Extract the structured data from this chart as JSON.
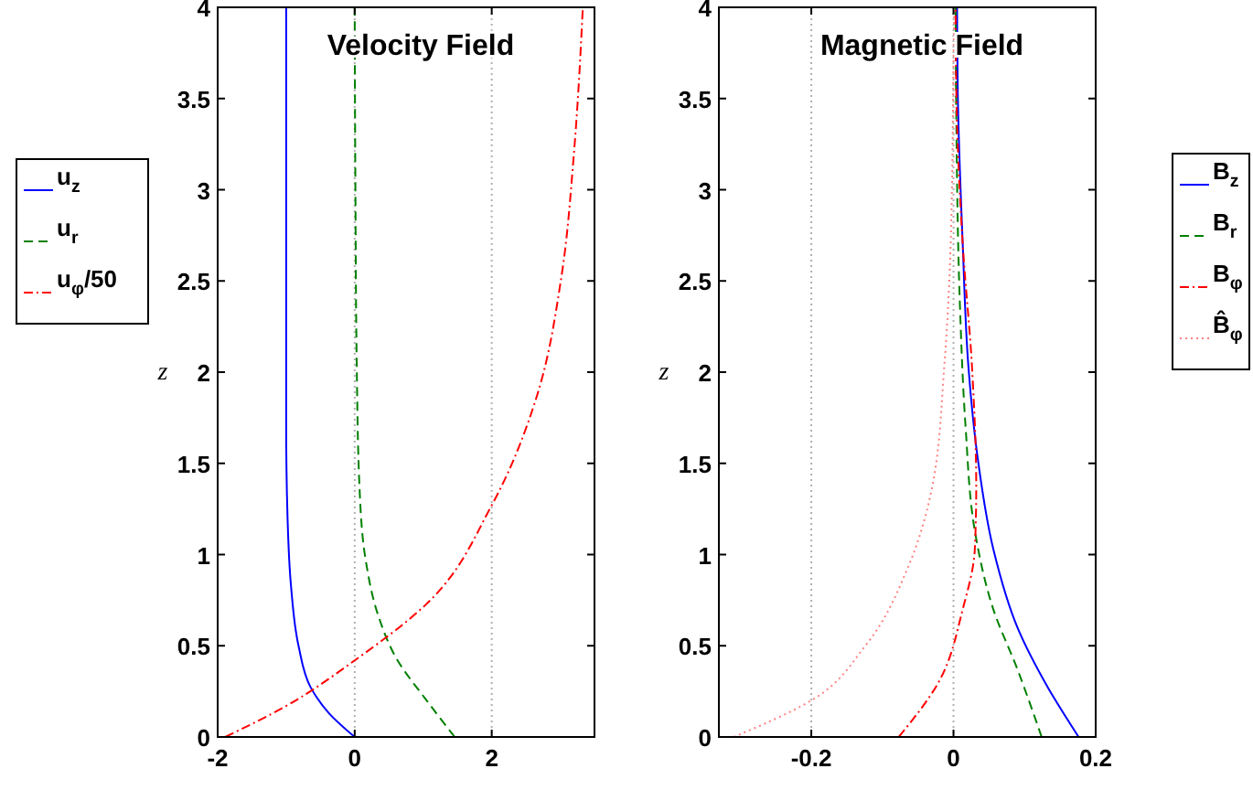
{
  "chart_data": [
    {
      "type": "line",
      "title": "Velocity Field",
      "ylabel": "z",
      "xlim": [
        -2,
        3.5
      ],
      "xticks": [
        -2,
        0,
        2
      ],
      "ylim": [
        0,
        4
      ],
      "yticks": [
        0,
        0.5,
        1,
        1.5,
        2,
        2.5,
        3,
        3.5,
        4
      ],
      "grid": "x",
      "legend": "left",
      "series": [
        {
          "name": "u$_{z}$",
          "color": "#0000ff",
          "line_style": "solid",
          "x": [
            0,
            -0.375,
            -0.64,
            -0.82,
            -0.93,
            -0.98,
            -1.0,
            -1.0
          ],
          "values": [
            0,
            0.13,
            0.27,
            0.5,
            0.83,
            1.2,
            1.7,
            4
          ]
        },
        {
          "name": "u$_{r}$",
          "color": "#008000",
          "line_style": "dashed",
          "x": [
            1.46,
            1.05,
            0.61,
            0.34,
            0.16,
            0.07,
            0.03,
            0.01,
            0
          ],
          "values": [
            0,
            0.2,
            0.43,
            0.67,
            0.97,
            1.37,
            2.03,
            3.03,
            4
          ]
        },
        {
          "name": "u$_{φ}$/50",
          "color": "#ff0000",
          "line_style": "dashdot",
          "x": [
            -1.89,
            -1.0,
            0,
            1.05,
            2.0,
            2.66,
            3.02,
            3.2,
            3.33
          ],
          "values": [
            0,
            0.17,
            0.42,
            0.73,
            1.27,
            1.87,
            2.53,
            3.2,
            4
          ]
        }
      ]
    },
    {
      "type": "line",
      "title": "Magnetic Field",
      "ylabel": "z",
      "xlim": [
        -0.33,
        0.2
      ],
      "xticks": [
        -0.2,
        0,
        0.2
      ],
      "ylim": [
        0,
        4
      ],
      "yticks": [
        0,
        0.5,
        1,
        1.5,
        2,
        2.5,
        3,
        3.5,
        4
      ],
      "grid": "x",
      "legend": "right",
      "series": [
        {
          "name": "B$_{z}$",
          "color": "#0000ff",
          "line_style": "solid",
          "x": [
            0.176,
            0.133,
            0.09,
            0.056,
            0.034,
            0.021,
            0.013,
            0.006,
            0.005
          ],
          "values": [
            0,
            0.27,
            0.6,
            1.03,
            1.53,
            2.03,
            2.7,
            3.53,
            4
          ]
        },
        {
          "name": "B$_{r}$",
          "color": "#008000",
          "line_style": "dashed",
          "x": [
            0.124,
            0.09,
            0.056,
            0.03,
            0.017,
            0.009,
            0.004,
            0.003
          ],
          "values": [
            0,
            0.37,
            0.7,
            1.13,
            1.7,
            2.37,
            3.37,
            4
          ]
        },
        {
          "name": "B$_{φ}$",
          "color": "#ff0000",
          "line_style": "dashdot",
          "x": [
            -0.077,
            -0.021,
            0.013,
            0.03,
            0.032,
            0.026,
            0.013,
            0.004,
            0.003
          ],
          "values": [
            0,
            0.3,
            0.7,
            1.03,
            1.37,
            2.03,
            2.7,
            3.53,
            4
          ]
        },
        {
          "name": "B̂$_{φ}$",
          "color": "#ff8080",
          "line_style": "dotted",
          "x": [
            -0.309,
            -0.2,
            -0.124,
            -0.064,
            -0.03,
            -0.013,
            -0.004,
            0,
            0.001
          ],
          "values": [
            0,
            0.2,
            0.5,
            0.93,
            1.37,
            2.03,
            2.7,
            3.7,
            4
          ]
        }
      ]
    }
  ]
}
